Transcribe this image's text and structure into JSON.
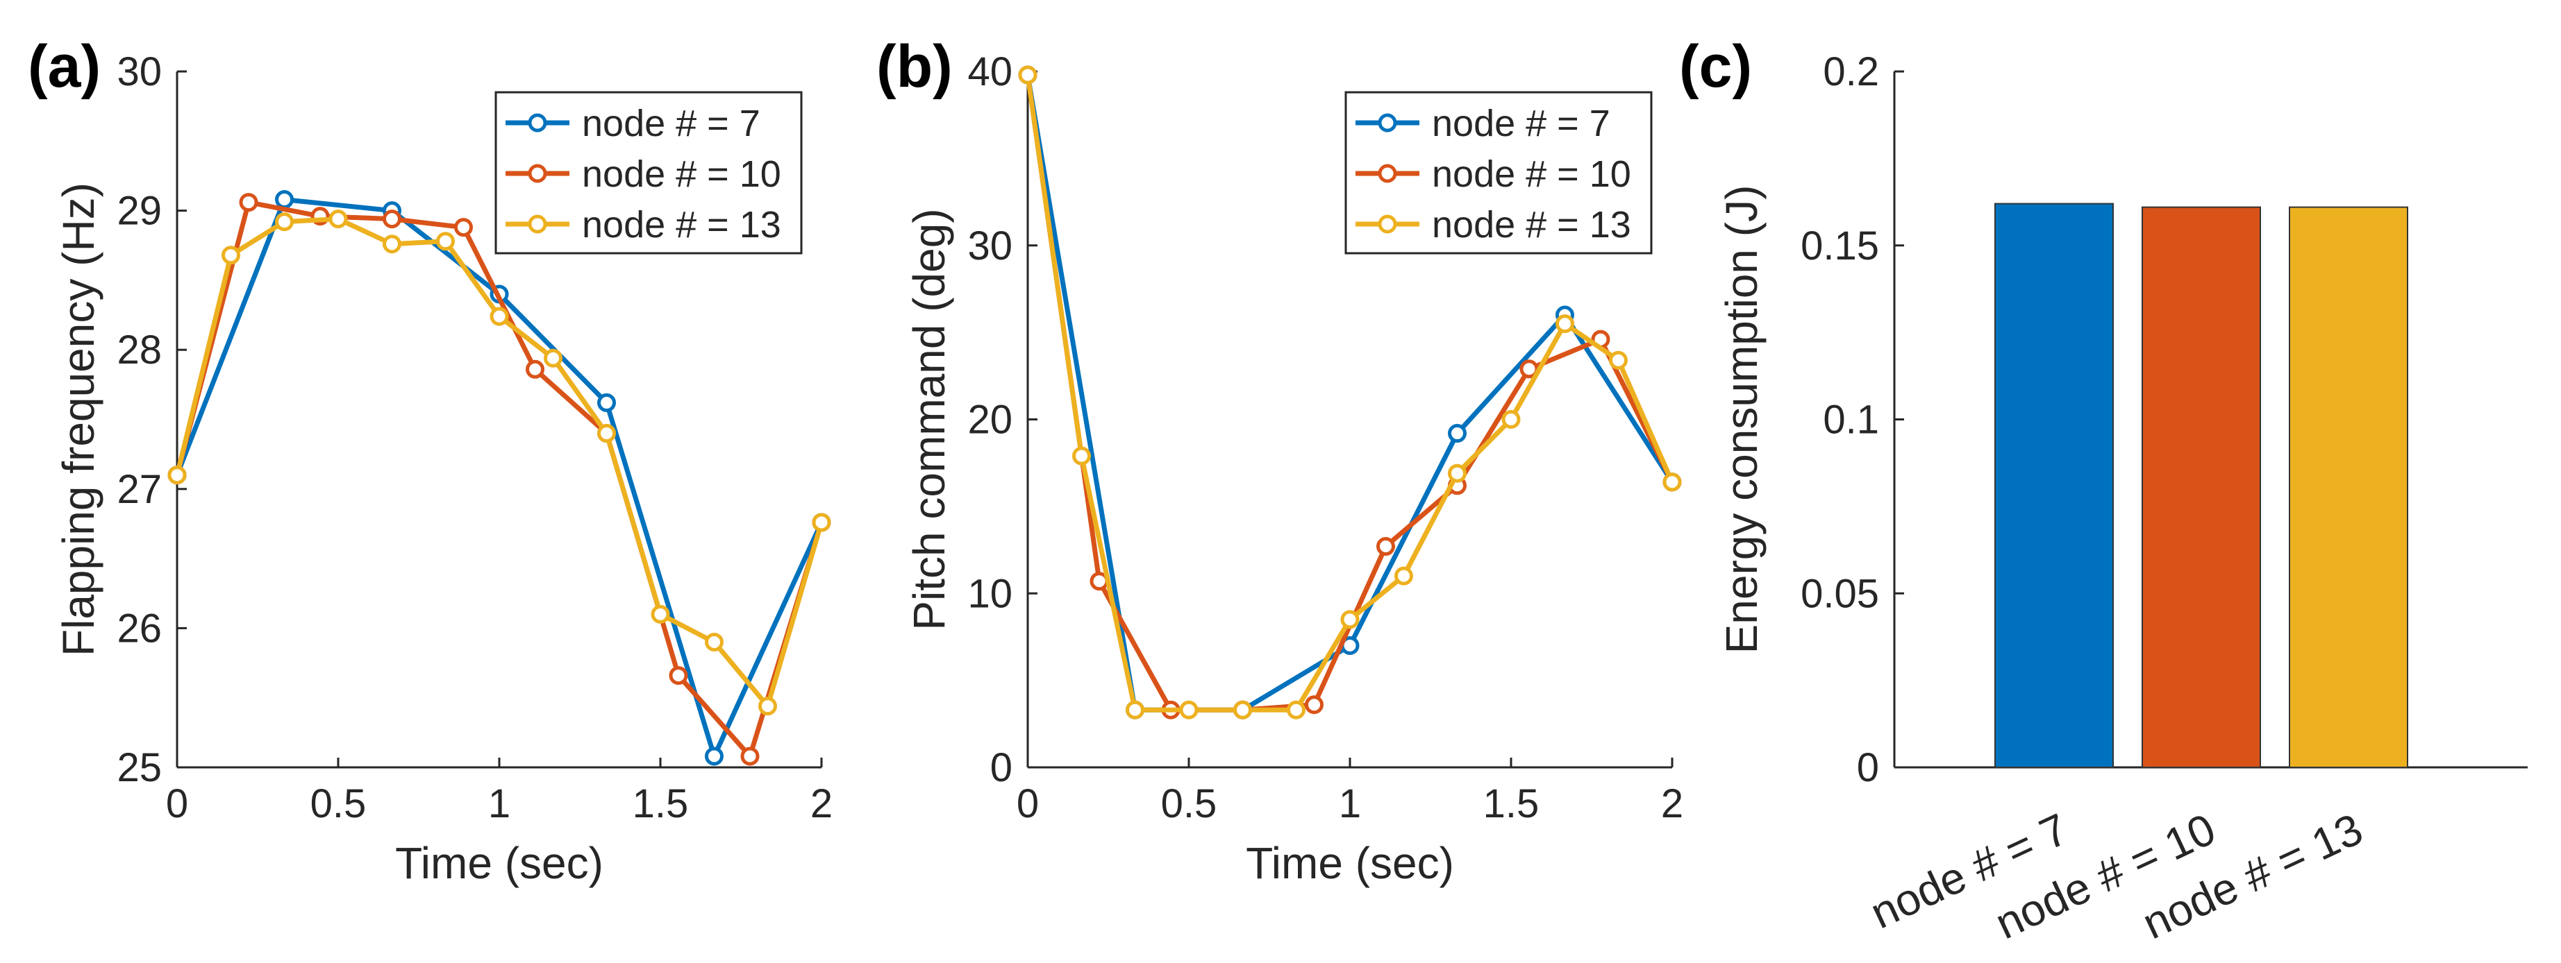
{
  "chart_data": [
    {
      "type": "line",
      "panel_label": "(a)",
      "title": "",
      "xlabel": "Time (sec)",
      "ylabel": "Flapping frequency (Hz)",
      "xlim": [
        0,
        2
      ],
      "ylim": [
        25,
        30
      ],
      "xticks": [
        0,
        0.5,
        1,
        1.5,
        2
      ],
      "xtick_labels": [
        "0",
        "0.5",
        "1",
        "1.5",
        "2"
      ],
      "yticks": [
        25,
        26,
        27,
        28,
        29,
        30
      ],
      "ytick_labels": [
        "25",
        "26",
        "27",
        "28",
        "29",
        "30"
      ],
      "grid": false,
      "legend_position": "top-right",
      "series": [
        {
          "name": "node # = 7",
          "color": "#0072BD",
          "x": [
            0,
            0.333,
            0.667,
            1.0,
            1.333,
            1.667,
            2.0
          ],
          "y": [
            27.1,
            29.08,
            29.0,
            28.4,
            27.62,
            25.08,
            26.76
          ]
        },
        {
          "name": "node # = 10",
          "color": "#D95319",
          "x": [
            0,
            0.222,
            0.444,
            0.667,
            0.889,
            1.111,
            1.333,
            1.556,
            1.778,
            2.0
          ],
          "y": [
            27.1,
            29.06,
            28.96,
            28.94,
            28.88,
            27.86,
            27.4,
            25.66,
            25.08,
            26.76
          ]
        },
        {
          "name": "node # = 13",
          "color": "#EDB120",
          "x": [
            0,
            0.167,
            0.333,
            0.5,
            0.667,
            0.833,
            1.0,
            1.167,
            1.333,
            1.5,
            1.667,
            1.833,
            2.0
          ],
          "y": [
            27.1,
            28.68,
            28.92,
            28.94,
            28.76,
            28.78,
            28.24,
            27.94,
            27.4,
            26.1,
            25.9,
            25.44,
            26.76
          ]
        }
      ]
    },
    {
      "type": "line",
      "panel_label": "(b)",
      "title": "",
      "xlabel": "Time (sec)",
      "ylabel": "Pitch command (deg)",
      "xlim": [
        0,
        2
      ],
      "ylim": [
        0,
        40
      ],
      "xticks": [
        0,
        0.5,
        1,
        1.5,
        2
      ],
      "xtick_labels": [
        "0",
        "0.5",
        "1",
        "1.5",
        "2"
      ],
      "yticks": [
        0,
        10,
        20,
        30,
        40
      ],
      "ytick_labels": [
        "0",
        "10",
        "20",
        "30",
        "40"
      ],
      "grid": false,
      "legend_position": "top-right",
      "series": [
        {
          "name": "node # = 7",
          "color": "#0072BD",
          "x": [
            0,
            0.333,
            0.667,
            1.0,
            1.333,
            1.667,
            2.0
          ],
          "y": [
            39.8,
            3.3,
            3.3,
            7.0,
            19.2,
            26.0,
            16.4
          ]
        },
        {
          "name": "node # = 10",
          "color": "#D95319",
          "x": [
            0,
            0.222,
            0.444,
            0.667,
            0.889,
            1.111,
            1.333,
            1.556,
            1.778,
            2.0
          ],
          "y": [
            39.8,
            10.7,
            3.3,
            3.3,
            3.6,
            12.7,
            16.2,
            22.9,
            24.6,
            16.4
          ]
        },
        {
          "name": "node # = 13",
          "color": "#EDB120",
          "x": [
            0,
            0.167,
            0.333,
            0.5,
            0.667,
            0.833,
            1.0,
            1.167,
            1.333,
            1.5,
            1.667,
            1.833,
            2.0
          ],
          "y": [
            39.8,
            17.9,
            3.3,
            3.3,
            3.3,
            3.3,
            8.5,
            11.0,
            16.9,
            20.0,
            25.5,
            23.4,
            16.4
          ]
        }
      ]
    },
    {
      "type": "bar",
      "panel_label": "(c)",
      "title": "",
      "xlabel": "",
      "ylabel": "Energy consumption (J)",
      "ylim": [
        0,
        0.2
      ],
      "yticks": [
        0,
        0.05,
        0.1,
        0.15,
        0.2
      ],
      "ytick_labels": [
        "0",
        "0.05",
        "0.1",
        "0.15",
        "0.2"
      ],
      "categories": [
        "node # = 7",
        "node # = 10",
        "node # = 13"
      ],
      "values": [
        0.162,
        0.161,
        0.161
      ],
      "colors": [
        "#0072BD",
        "#D95319",
        "#EDB120"
      ],
      "grid": false
    }
  ]
}
